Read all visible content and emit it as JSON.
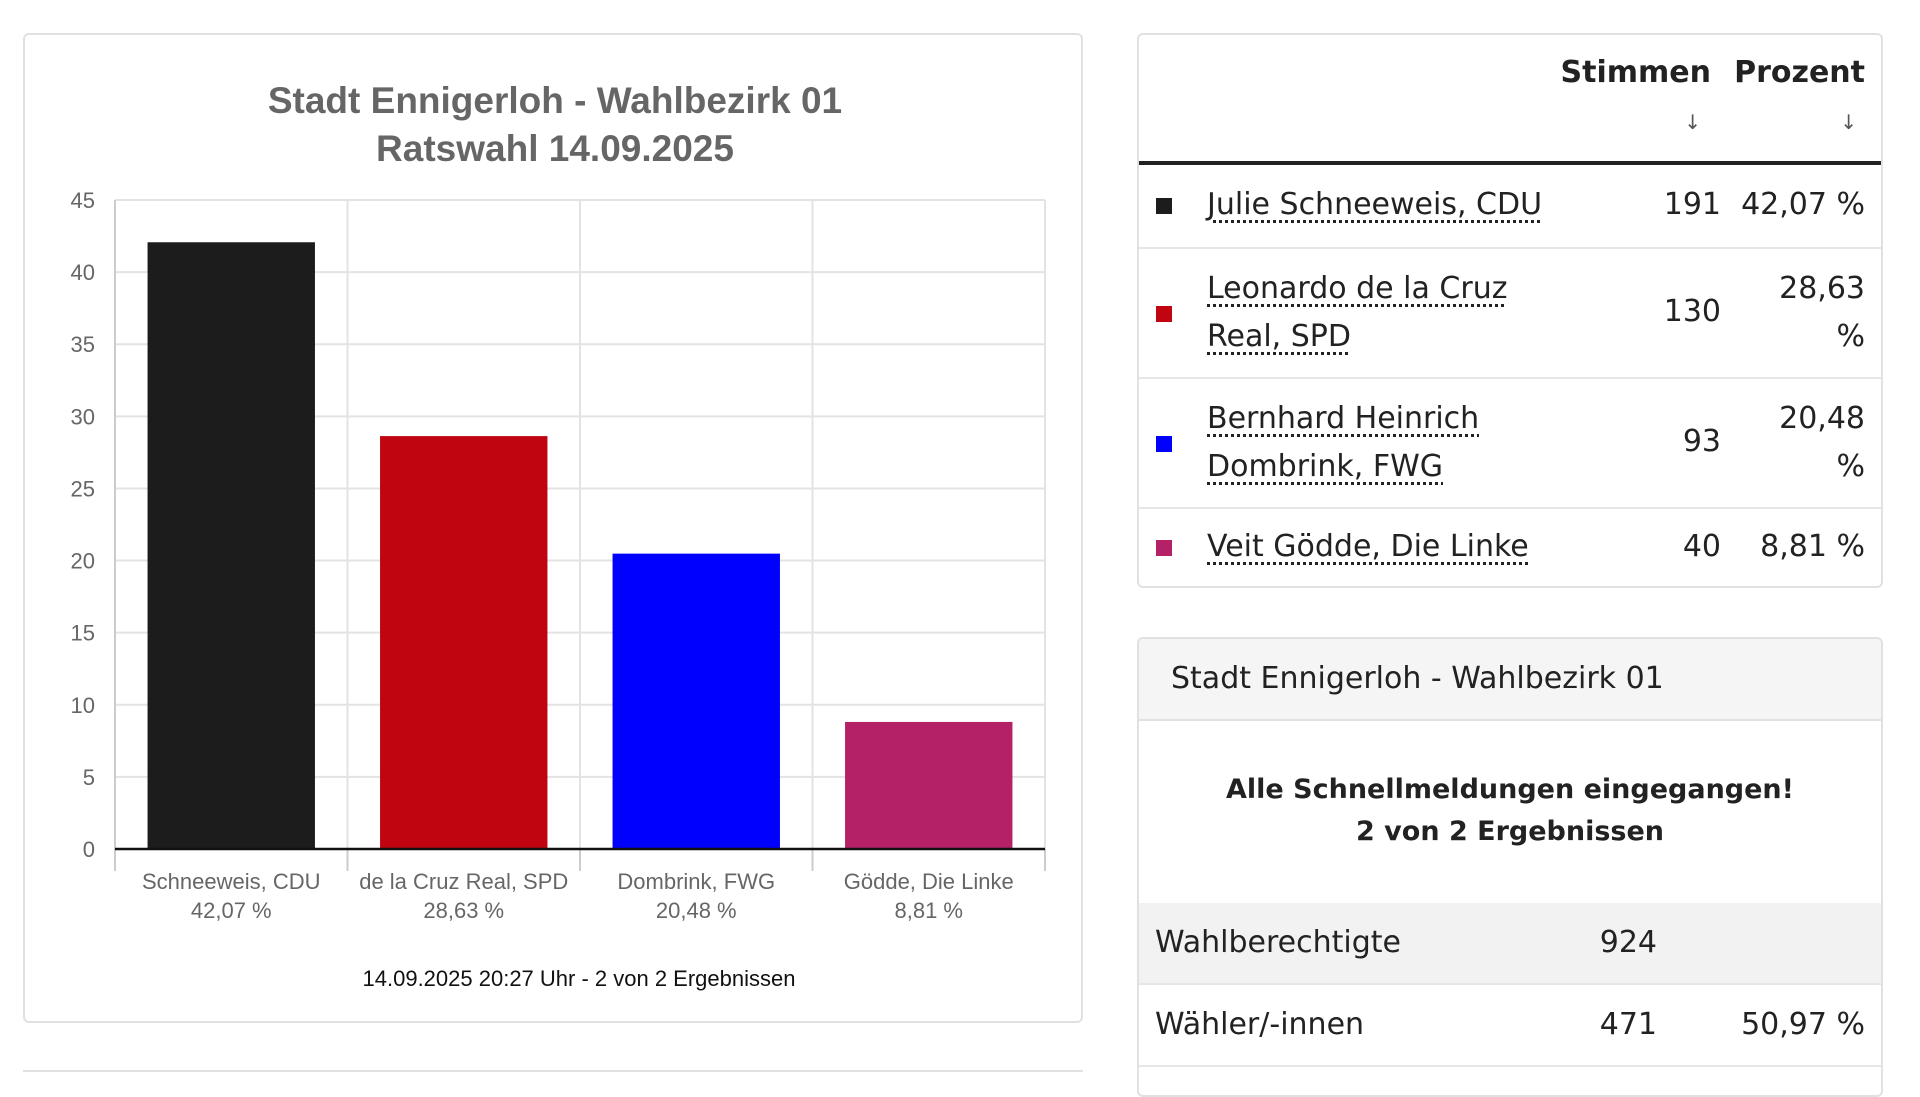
{
  "chart_data": {
    "type": "bar",
    "title": "Stadt Ennigerloh - Wahlbezirk 01",
    "subtitle": "Ratswahl 14.09.2025",
    "categories": [
      "Schneeweis, CDU",
      "de la Cruz Real, SPD",
      "Dombrink, FWG",
      "Gödde, Die Linke"
    ],
    "category_sublabels": [
      "42,07 %",
      "28,63 %",
      "20,48 %",
      "8,81 %"
    ],
    "values": [
      42.07,
      28.63,
      20.48,
      8.81
    ],
    "colors": [
      "#1c1c1c",
      "#c00410",
      "#0000ff",
      "#b42167"
    ],
    "ylim": [
      0,
      45
    ],
    "yticks": [
      0,
      5,
      10,
      15,
      20,
      25,
      30,
      35,
      40,
      45
    ],
    "grid": true,
    "legend": "none",
    "note": "14.09.2025 20:27 Uhr - 2 von 2 Ergebnissen"
  },
  "results_table": {
    "col_votes": "Stimmen",
    "col_percent": "Prozent",
    "sort_icon": "↓",
    "rows": [
      {
        "name_line1": "Julie Schneeweis, CDU",
        "name_line2": "",
        "votes": "191",
        "pct_line1": "42,07 %",
        "pct_line2": "",
        "color": "#1c1c1c"
      },
      {
        "name_line1": "Leonardo de la Cruz",
        "name_line2": "Real, SPD",
        "votes": "130",
        "pct_line1": "28,63",
        "pct_line2": "%",
        "color": "#c00410"
      },
      {
        "name_line1": "Bernhard Heinrich",
        "name_line2": "Dombrink, FWG",
        "votes": "93",
        "pct_line1": "20,48",
        "pct_line2": "%",
        "color": "#0000ff"
      },
      {
        "name_line1": "Veit Gödde, Die Linke",
        "name_line2": "",
        "votes": "40",
        "pct_line1": "8,81 %",
        "pct_line2": "",
        "color": "#b42167"
      }
    ]
  },
  "stats": {
    "title": "Stadt Ennigerloh - Wahlbezirk 01",
    "status_line1": "Alle Schnellmeldungen eingegangen!",
    "status_line2": "2 von 2 Ergebnissen",
    "rows": [
      {
        "label": "Wahlberechtigte",
        "value": "924",
        "pct": ""
      },
      {
        "label": "Wähler/-innen",
        "value": "471",
        "pct": "50,97 %"
      }
    ]
  }
}
